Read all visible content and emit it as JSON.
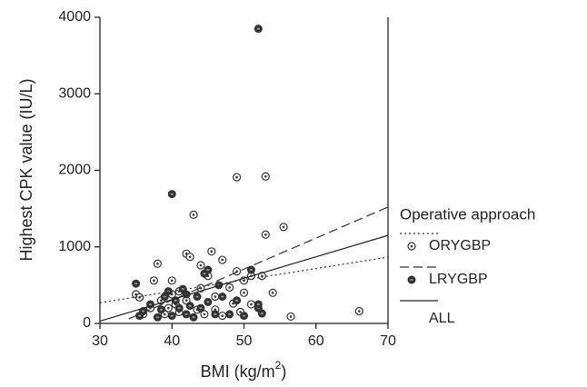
{
  "chart_data": {
    "type": "scatter",
    "y_label": "Highest CPK value (IU/L)",
    "x_label": [
      "BMI (kg/m",
      "2",
      ")"
    ],
    "legend_title": "Operative approach",
    "xlim": [
      30,
      70
    ],
    "xticks": [
      30,
      40,
      50,
      60,
      70
    ],
    "ylim": [
      0,
      4000
    ],
    "yticks": [
      0,
      1000,
      2000,
      3000,
      4000
    ],
    "grid": false,
    "series": [
      {
        "name": "ORYGBP",
        "color": "#333333",
        "marker": "open",
        "x": [
          35,
          35.5,
          36,
          37,
          37.5,
          38,
          38.5,
          39,
          39.5,
          40,
          40,
          40.5,
          41,
          41,
          42,
          42.5,
          43,
          42,
          43.5,
          44,
          44,
          44.5,
          45,
          45.5,
          46,
          46,
          47,
          47,
          48,
          48.5,
          49,
          49,
          49.5,
          50,
          50,
          51,
          51,
          52.5,
          53,
          53,
          54,
          55.5,
          56.5,
          66
        ],
        "values": [
          380,
          340,
          120,
          200,
          560,
          780,
          300,
          120,
          200,
          560,
          380,
          250,
          150,
          420,
          910,
          870,
          1420,
          300,
          180,
          760,
          460,
          120,
          620,
          940,
          350,
          180,
          830,
          100,
          470,
          260,
          680,
          1910,
          150,
          560,
          400,
          620,
          250,
          620,
          1920,
          1160,
          400,
          1260,
          90,
          160
        ],
        "fit": {
          "x": [
            30,
            70
          ],
          "values": [
            270,
            866
          ],
          "dash": "dotted"
        }
      },
      {
        "name": "LRYGBP",
        "color": "#333333",
        "marker": "filled",
        "x": [
          35,
          35.5,
          36,
          37,
          38,
          38.5,
          39,
          39.5,
          40,
          40,
          40.5,
          41,
          41.5,
          42,
          42,
          42.5,
          43,
          43.5,
          44,
          44.5,
          45,
          45,
          46,
          46.5,
          47,
          48,
          49,
          50,
          51,
          52,
          52,
          52,
          52.5
        ],
        "values": [
          520,
          100,
          160,
          250,
          80,
          180,
          350,
          420,
          1690,
          100,
          300,
          200,
          450,
          380,
          120,
          230,
          80,
          350,
          200,
          650,
          700,
          280,
          120,
          500,
          350,
          120,
          300,
          100,
          700,
          3850,
          200,
          250,
          130
        ],
        "fit": {
          "x": [
            34,
            70
          ],
          "values": [
            60,
            1520
          ],
          "dash": "dashed"
        }
      },
      {
        "name": "ALL",
        "color": "#222222",
        "fit": {
          "x": [
            30,
            70
          ],
          "values": [
            30,
            1150
          ],
          "dash": "solid"
        }
      }
    ]
  }
}
